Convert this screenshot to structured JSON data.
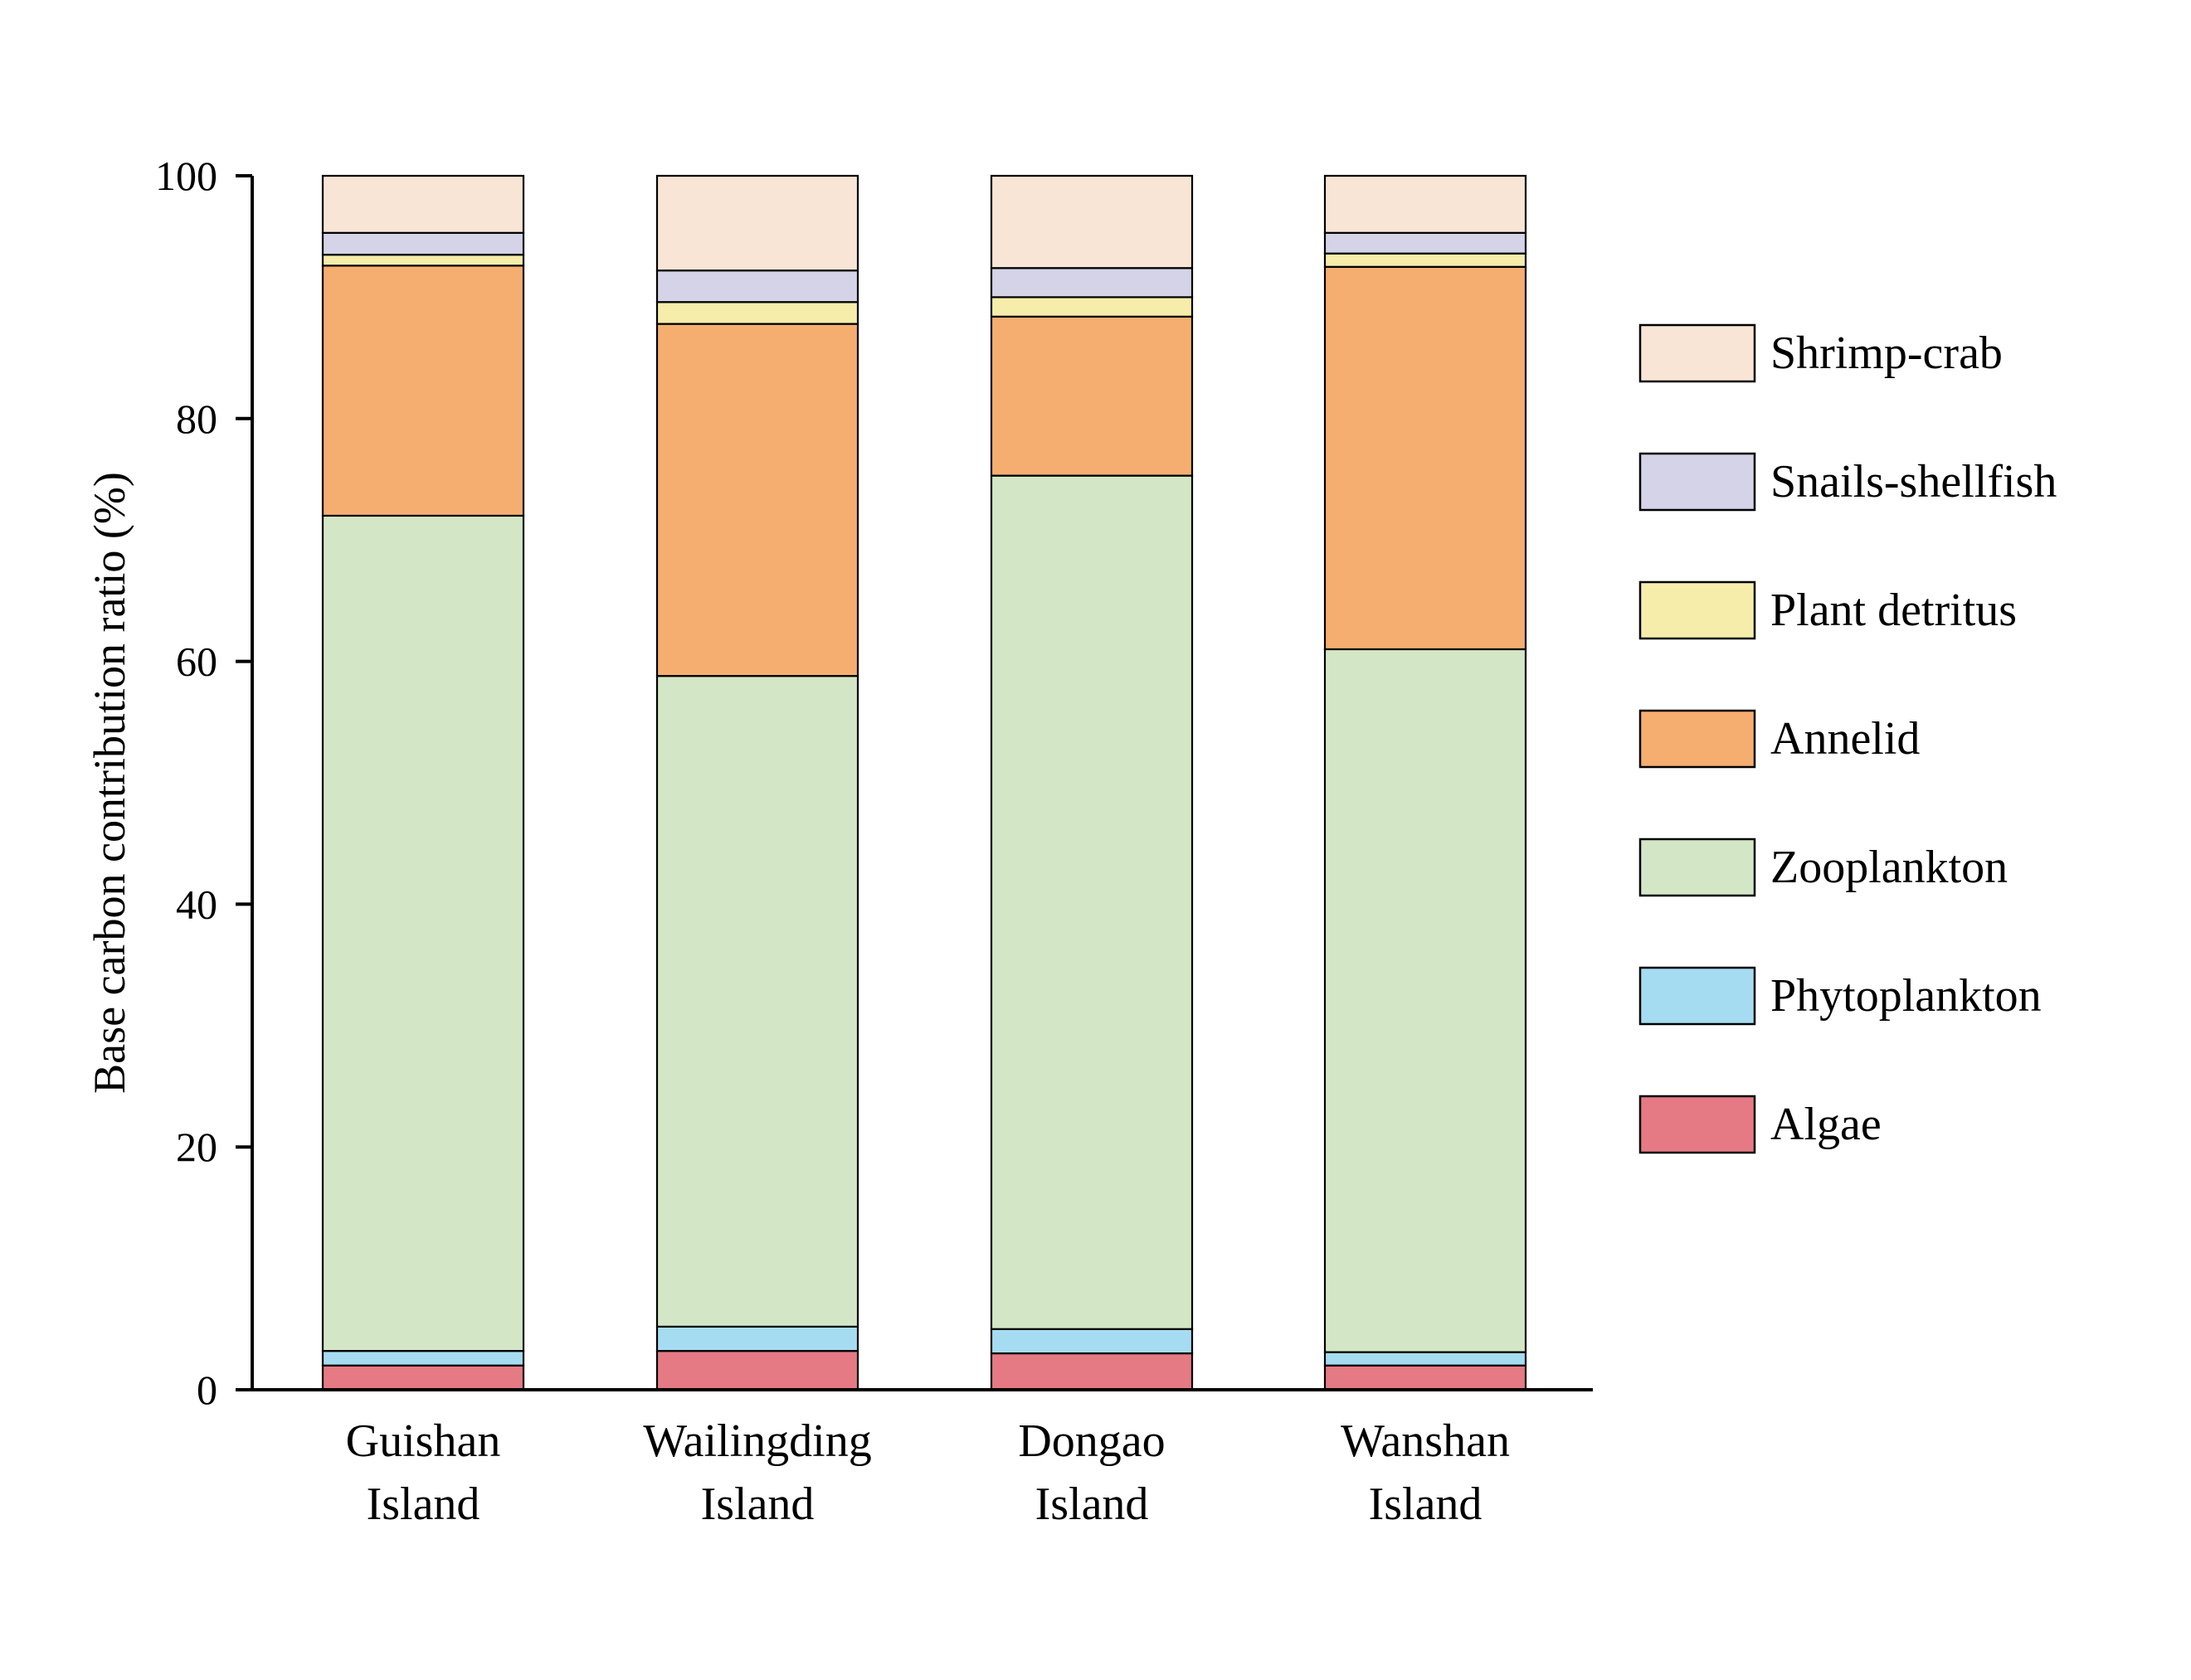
{
  "chart_data": {
    "type": "bar",
    "stacked": true,
    "ylabel": "Base carbon contribution ratio (%)",
    "ylim": [
      0,
      100
    ],
    "yticks": [
      0,
      20,
      40,
      60,
      80,
      100
    ],
    "categories": [
      [
        "Guishan",
        "Island"
      ],
      [
        "Wailingding",
        "Island"
      ],
      [
        "Dongao",
        "Island"
      ],
      [
        "Wanshan",
        "Island"
      ]
    ],
    "series": [
      {
        "name": "Algae",
        "color": "#E57A85",
        "values": [
          2.0,
          3.2,
          3.0,
          2.0
        ]
      },
      {
        "name": "Phytoplankton",
        "color": "#A6DCF2",
        "values": [
          1.2,
          2.0,
          2.0,
          1.1
        ]
      },
      {
        "name": "Zooplankton",
        "color": "#D3E7C6",
        "values": [
          68.8,
          53.6,
          70.3,
          57.9
        ]
      },
      {
        "name": "Annelid",
        "color": "#F5AE70",
        "values": [
          20.6,
          29.0,
          13.1,
          31.5
        ]
      },
      {
        "name": "Plant detritus",
        "color": "#F6EDAB",
        "values": [
          0.9,
          1.8,
          1.6,
          1.1
        ]
      },
      {
        "name": "Snails-shellfish",
        "color": "#D5D3E8",
        "values": [
          1.8,
          2.6,
          2.4,
          1.7
        ]
      },
      {
        "name": "Shrimp-crab",
        "color": "#F8E5D5",
        "values": [
          4.7,
          7.8,
          7.6,
          4.7
        ]
      }
    ],
    "legend_position": "right",
    "legend_order": [
      "Shrimp-crab",
      "Snails-shellfish",
      "Plant detritus",
      "Annelid",
      "Zooplankton",
      "Phytoplankton",
      "Algae"
    ],
    "grid": false
  }
}
